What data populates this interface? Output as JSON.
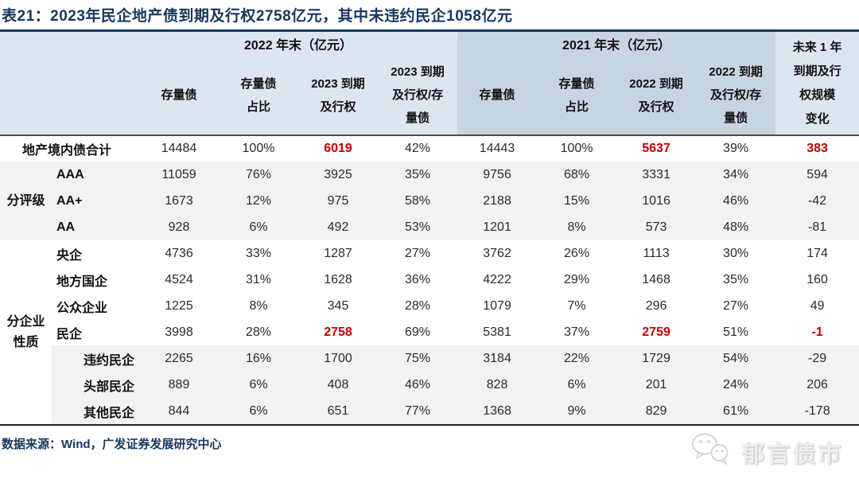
{
  "title": "表21：2023年民企地产债到期及行权2758亿元，其中未违约民企1058亿元",
  "colors": {
    "navy": "#17375d",
    "header_light_blue": "#dce6f1",
    "header_dark_blue": "#c7d4e2",
    "row_gray": "#f2f2f2",
    "highlight_red": "#c00000"
  },
  "header": {
    "group_2022": "2022 年末（亿元）",
    "group_2021": "2021 年末（亿元）",
    "cols_2022": [
      [
        "存量债"
      ],
      [
        "存量债",
        "占比"
      ],
      [
        "2023 到期",
        "及行权"
      ],
      [
        "2023 到期",
        "及行权/存",
        "量债"
      ]
    ],
    "cols_2021": [
      [
        "存量债"
      ],
      [
        "存量债",
        "占比"
      ],
      [
        "2022 到期",
        "及行权"
      ],
      [
        "2022 到期",
        "及行权/存",
        "量债"
      ]
    ],
    "last_col": [
      "未来 1 年",
      "到期及行",
      "权规模",
      "变化"
    ]
  },
  "table": {
    "rows": [
      {
        "label": "地产境内债合计",
        "labelSpan": true,
        "shade": "white",
        "values": [
          "14484",
          "100%",
          "6019",
          "42%",
          "14443",
          "100%",
          "5637",
          "39%",
          "383"
        ],
        "red": [
          2,
          6,
          8
        ]
      },
      {
        "group": {
          "lines": [
            "分评级"
          ],
          "rows": 3
        },
        "label": "AAA",
        "shade": "gray",
        "values": [
          "11059",
          "76%",
          "3925",
          "35%",
          "9756",
          "68%",
          "3331",
          "34%",
          "594"
        ],
        "red": []
      },
      {
        "label": "AA+",
        "shade": "gray",
        "values": [
          "1673",
          "12%",
          "975",
          "58%",
          "2188",
          "15%",
          "1016",
          "46%",
          "-42"
        ],
        "red": []
      },
      {
        "label": "AA",
        "shade": "gray",
        "values": [
          "928",
          "6%",
          "492",
          "53%",
          "1201",
          "8%",
          "573",
          "48%",
          "-81"
        ],
        "red": []
      },
      {
        "group": {
          "lines": [
            "分企业",
            "性质"
          ],
          "rows": 7
        },
        "label": "央企",
        "shade": "white",
        "values": [
          "4736",
          "33%",
          "1287",
          "27%",
          "3762",
          "26%",
          "1113",
          "30%",
          "174"
        ],
        "red": []
      },
      {
        "label": "地方国企",
        "shade": "white",
        "values": [
          "4524",
          "31%",
          "1628",
          "36%",
          "4222",
          "29%",
          "1468",
          "35%",
          "160"
        ],
        "red": []
      },
      {
        "label": "公众企业",
        "shade": "white",
        "values": [
          "1225",
          "8%",
          "345",
          "28%",
          "1079",
          "7%",
          "296",
          "27%",
          "49"
        ],
        "red": []
      },
      {
        "label": "民企",
        "shade": "white",
        "values": [
          "3998",
          "28%",
          "2758",
          "69%",
          "5381",
          "37%",
          "2759",
          "51%",
          "-1"
        ],
        "red": [
          2,
          6,
          8
        ]
      },
      {
        "label": "违约民企",
        "sub": true,
        "shade": "gray",
        "values": [
          "2265",
          "16%",
          "1700",
          "75%",
          "3184",
          "22%",
          "1729",
          "54%",
          "-29"
        ],
        "red": []
      },
      {
        "label": "头部民企",
        "sub": true,
        "shade": "gray",
        "values": [
          "889",
          "6%",
          "408",
          "46%",
          "828",
          "6%",
          "201",
          "24%",
          "206"
        ],
        "red": []
      },
      {
        "label": "其他民企",
        "sub": true,
        "shade": "gray",
        "values": [
          "844",
          "6%",
          "651",
          "77%",
          "1368",
          "9%",
          "829",
          "61%",
          "-178"
        ],
        "red": []
      }
    ]
  },
  "footer": {
    "source": "数据来源：Wind，广发证券发展研究中心",
    "watermark": "郁言债市",
    "watermark_icon": "wechat-icon"
  }
}
